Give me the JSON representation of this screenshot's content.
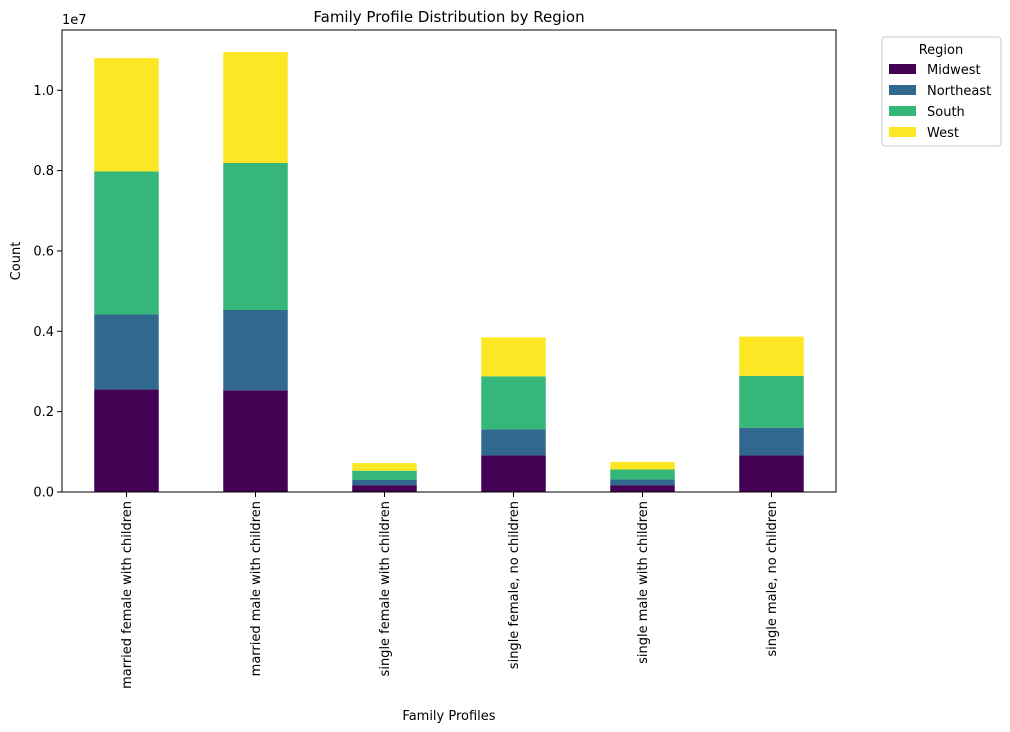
{
  "chart_data": {
    "type": "bar",
    "stacked": true,
    "title": "Family Profile Distribution by Region",
    "xlabel": "Family Profiles",
    "ylabel": "Count",
    "y_scale_label": "1e7",
    "ylim": [
      0,
      11500000
    ],
    "yticks": [
      0,
      2000000,
      4000000,
      6000000,
      8000000,
      10000000
    ],
    "ytick_labels": [
      "0.0",
      "0.2",
      "0.4",
      "0.6",
      "0.8",
      "1.0"
    ],
    "categories": [
      "married female with children",
      "married male with children",
      "single female with children",
      "single female, no children",
      "single male with children",
      "single male, no children"
    ],
    "legend_title": "Region",
    "legend_position": "outside top-right",
    "series": [
      {
        "name": "Midwest",
        "color": "#440154",
        "values": [
          2550000,
          2530000,
          170000,
          910000,
          170000,
          910000
        ]
      },
      {
        "name": "Northeast",
        "color": "#31688e",
        "values": [
          1870000,
          2000000,
          130000,
          650000,
          140000,
          690000
        ]
      },
      {
        "name": "South",
        "color": "#35b779",
        "values": [
          3560000,
          3660000,
          230000,
          1320000,
          250000,
          1290000
        ]
      },
      {
        "name": "West",
        "color": "#fde725",
        "values": [
          2820000,
          2760000,
          190000,
          970000,
          190000,
          980000
        ]
      }
    ]
  }
}
